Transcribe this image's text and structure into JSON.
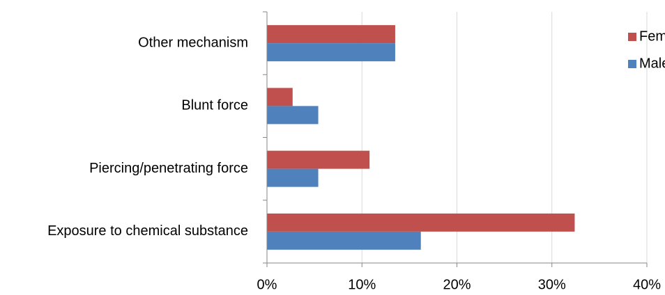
{
  "chart_data": {
    "type": "hbar",
    "categories": [
      "Other mechanism",
      "Blunt force",
      "Piercing/penetrating force",
      "Exposure to chemical substance"
    ],
    "series": [
      {
        "name": "Female",
        "color": "#c0504d",
        "values": [
          13.5,
          2.7,
          10.8,
          32.4
        ]
      },
      {
        "name": "Male",
        "color": "#4f81bd",
        "values": [
          13.5,
          5.4,
          5.4,
          16.2
        ]
      }
    ],
    "xlim": [
      0,
      40
    ],
    "xticks": [
      {
        "value": 0,
        "label": "0%"
      },
      {
        "value": 10,
        "label": "10%"
      },
      {
        "value": 20,
        "label": "20%"
      },
      {
        "value": 30,
        "label": "30%"
      },
      {
        "value": 40,
        "label": "40%"
      }
    ],
    "grid": true,
    "legend": "top-right"
  }
}
